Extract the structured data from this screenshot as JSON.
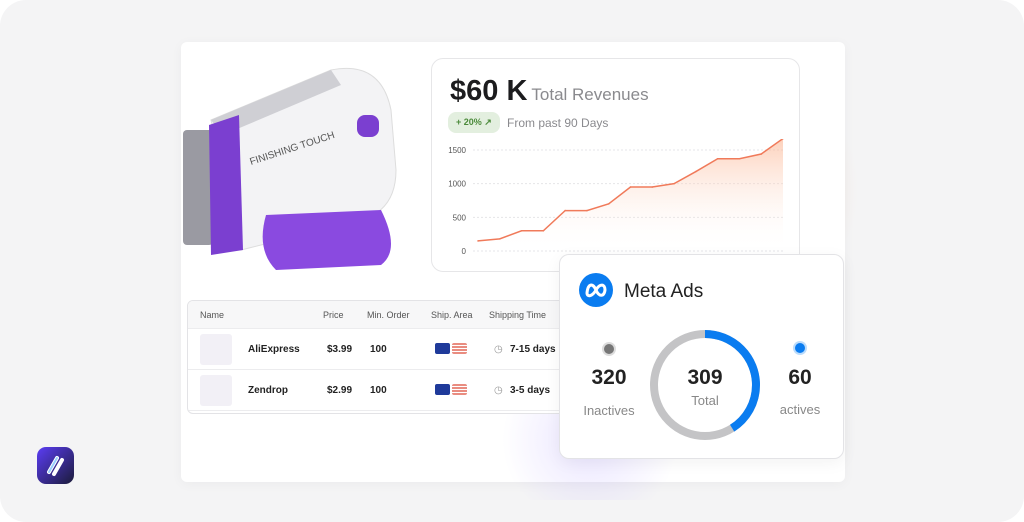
{
  "revenue": {
    "amount": "$60 K",
    "label": "Total Revenues",
    "badge": "+ 20% ↗",
    "period": "From past 90 Days"
  },
  "chart_data": {
    "type": "area",
    "ylim": [
      0,
      1700
    ],
    "yticks": [
      0,
      500,
      1000,
      1500
    ],
    "ytick_labels": [
      "0",
      "500",
      "1000",
      "1500"
    ],
    "grid": true,
    "color": "#f07a5a",
    "values": [
      150,
      180,
      300,
      300,
      600,
      600,
      700,
      950,
      950,
      1000,
      1180,
      1370,
      1370,
      1440,
      1670
    ]
  },
  "table": {
    "headers": [
      "Name",
      "Price",
      "Min. Order",
      "Ship. Area",
      "Shipping Time"
    ],
    "rows": [
      {
        "name": "AliExpress",
        "price": "$3.99",
        "min_order": "100",
        "ship_area": [
          "EU",
          "US"
        ],
        "shipping_time": "7-15 days"
      },
      {
        "name": "Zendrop",
        "price": "$2.99",
        "min_order": "100",
        "ship_area": [
          "EU",
          "US"
        ],
        "shipping_time": "3-5 days"
      }
    ]
  },
  "meta": {
    "title": "Meta Ads",
    "inactive_value": "320",
    "inactive_label": "Inactives",
    "total_value": "309",
    "total_label": "Total",
    "active_value": "60",
    "active_label": "actives",
    "active_fraction": 0.41,
    "active_color": "#0a7cf0",
    "inactive_color": "#c4c4c6"
  },
  "product": {
    "brand_text": "FINISHING TOUCH",
    "accent": "#7b3fd0"
  }
}
